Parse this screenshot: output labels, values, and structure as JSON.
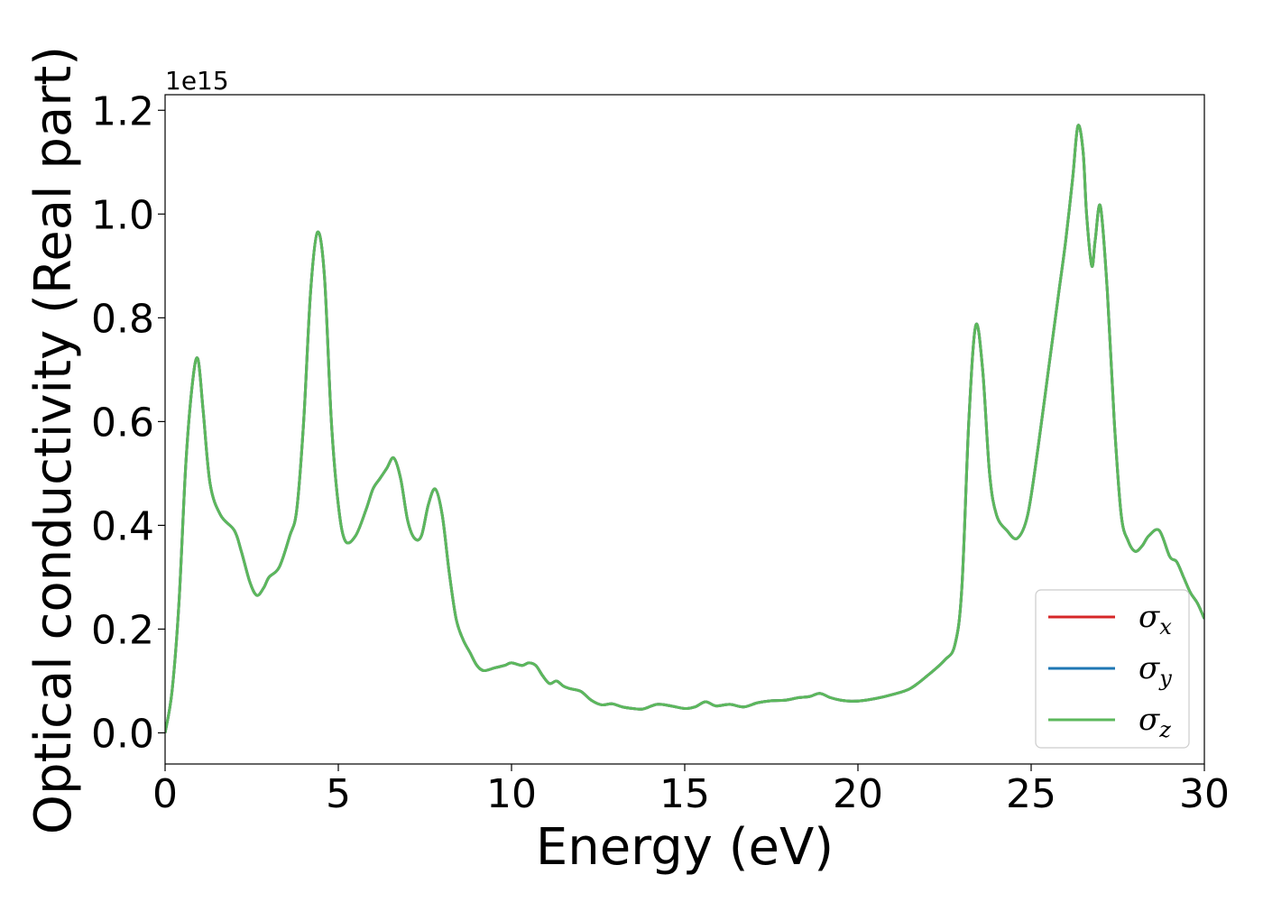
{
  "chart_data": {
    "type": "line",
    "xlabel": "Energy (eV)",
    "ylabel": "Optical conductivity (Real part)",
    "y_offset_label": "1e15",
    "xlim": [
      0,
      30
    ],
    "ylim": [
      -0.06,
      1.23
    ],
    "xticks": [
      0,
      5,
      10,
      15,
      20,
      25,
      30
    ],
    "xtick_labels": [
      "0",
      "5",
      "10",
      "15",
      "20",
      "25",
      "30"
    ],
    "yticks": [
      0.0,
      0.2,
      0.4,
      0.6,
      0.8,
      1.0,
      1.2
    ],
    "ytick_labels": [
      "0.0",
      "0.2",
      "0.4",
      "0.6",
      "0.8",
      "1.0",
      "1.2"
    ],
    "grid": false,
    "legend_position": "lower-right",
    "x": [
      0,
      0.2,
      0.4,
      0.6,
      0.8,
      0.95,
      1.1,
      1.3,
      1.6,
      2.0,
      2.2,
      2.45,
      2.65,
      2.85,
      3.0,
      3.3,
      3.6,
      3.8,
      4.0,
      4.2,
      4.4,
      4.6,
      4.8,
      5.0,
      5.2,
      5.5,
      5.8,
      6.0,
      6.2,
      6.4,
      6.6,
      6.8,
      7.0,
      7.2,
      7.4,
      7.6,
      7.8,
      8.0,
      8.2,
      8.4,
      8.6,
      8.8,
      9.0,
      9.2,
      9.5,
      9.8,
      10.0,
      10.3,
      10.5,
      10.7,
      10.9,
      11.1,
      11.3,
      11.5,
      11.7,
      12.0,
      12.3,
      12.6,
      12.9,
      13.2,
      13.5,
      13.8,
      14.2,
      14.6,
      15.0,
      15.3,
      15.6,
      15.9,
      16.3,
      16.7,
      17.1,
      17.5,
      17.9,
      18.3,
      18.6,
      18.9,
      19.2,
      19.5,
      19.8,
      20.1,
      20.5,
      21.0,
      21.5,
      22.0,
      22.5,
      22.8,
      23.0,
      23.2,
      23.4,
      23.6,
      23.8,
      24.0,
      24.3,
      24.6,
      24.9,
      25.2,
      25.5,
      25.8,
      26.0,
      26.2,
      26.35,
      26.5,
      26.6,
      26.75,
      26.85,
      27.0,
      27.2,
      27.4,
      27.6,
      27.8,
      28.0,
      28.2,
      28.4,
      28.7,
      29.0,
      29.2,
      29.4,
      29.6,
      29.8,
      30.0
    ],
    "series": [
      {
        "name": "σx",
        "color": "#d62728",
        "values": [
          0.0,
          0.08,
          0.25,
          0.52,
          0.68,
          0.72,
          0.62,
          0.48,
          0.42,
          0.39,
          0.35,
          0.29,
          0.265,
          0.28,
          0.3,
          0.32,
          0.38,
          0.43,
          0.6,
          0.85,
          0.965,
          0.88,
          0.6,
          0.44,
          0.37,
          0.38,
          0.43,
          0.47,
          0.49,
          0.51,
          0.53,
          0.49,
          0.41,
          0.375,
          0.38,
          0.44,
          0.47,
          0.42,
          0.31,
          0.22,
          0.18,
          0.155,
          0.13,
          0.12,
          0.125,
          0.13,
          0.135,
          0.13,
          0.135,
          0.13,
          0.11,
          0.095,
          0.1,
          0.09,
          0.085,
          0.08,
          0.063,
          0.054,
          0.056,
          0.05,
          0.047,
          0.046,
          0.055,
          0.052,
          0.047,
          0.05,
          0.06,
          0.052,
          0.055,
          0.05,
          0.058,
          0.062,
          0.063,
          0.068,
          0.07,
          0.076,
          0.068,
          0.063,
          0.061,
          0.062,
          0.066,
          0.074,
          0.085,
          0.11,
          0.14,
          0.17,
          0.28,
          0.6,
          0.785,
          0.7,
          0.5,
          0.42,
          0.39,
          0.375,
          0.42,
          0.55,
          0.7,
          0.85,
          0.95,
          1.07,
          1.17,
          1.12,
          1.0,
          0.9,
          0.95,
          1.015,
          0.85,
          0.6,
          0.42,
          0.37,
          0.35,
          0.36,
          0.38,
          0.39,
          0.34,
          0.33,
          0.3,
          0.27,
          0.25,
          0.22
        ]
      },
      {
        "name": "σy",
        "color": "#1f77b4",
        "values": [
          0.0,
          0.08,
          0.25,
          0.52,
          0.68,
          0.72,
          0.62,
          0.48,
          0.42,
          0.39,
          0.35,
          0.29,
          0.265,
          0.28,
          0.3,
          0.32,
          0.38,
          0.43,
          0.6,
          0.85,
          0.965,
          0.88,
          0.6,
          0.44,
          0.37,
          0.38,
          0.43,
          0.47,
          0.49,
          0.51,
          0.53,
          0.49,
          0.41,
          0.375,
          0.38,
          0.44,
          0.47,
          0.42,
          0.31,
          0.22,
          0.18,
          0.155,
          0.13,
          0.12,
          0.125,
          0.13,
          0.135,
          0.13,
          0.135,
          0.13,
          0.11,
          0.095,
          0.1,
          0.09,
          0.085,
          0.08,
          0.063,
          0.054,
          0.056,
          0.05,
          0.047,
          0.046,
          0.055,
          0.052,
          0.047,
          0.05,
          0.06,
          0.052,
          0.055,
          0.05,
          0.058,
          0.062,
          0.063,
          0.068,
          0.07,
          0.076,
          0.068,
          0.063,
          0.061,
          0.062,
          0.066,
          0.074,
          0.085,
          0.11,
          0.14,
          0.17,
          0.28,
          0.6,
          0.785,
          0.7,
          0.5,
          0.42,
          0.39,
          0.375,
          0.42,
          0.55,
          0.7,
          0.85,
          0.95,
          1.07,
          1.17,
          1.12,
          1.0,
          0.9,
          0.95,
          1.015,
          0.85,
          0.6,
          0.42,
          0.37,
          0.35,
          0.36,
          0.38,
          0.39,
          0.34,
          0.33,
          0.3,
          0.27,
          0.25,
          0.22
        ]
      },
      {
        "name": "σz",
        "color": "#5cb85c",
        "values": [
          0.0,
          0.08,
          0.25,
          0.52,
          0.68,
          0.72,
          0.62,
          0.48,
          0.42,
          0.39,
          0.35,
          0.29,
          0.265,
          0.28,
          0.3,
          0.32,
          0.38,
          0.43,
          0.6,
          0.85,
          0.965,
          0.88,
          0.6,
          0.44,
          0.37,
          0.38,
          0.43,
          0.47,
          0.49,
          0.51,
          0.53,
          0.49,
          0.41,
          0.375,
          0.38,
          0.44,
          0.47,
          0.42,
          0.31,
          0.22,
          0.18,
          0.155,
          0.13,
          0.12,
          0.125,
          0.13,
          0.135,
          0.13,
          0.135,
          0.13,
          0.11,
          0.095,
          0.1,
          0.09,
          0.085,
          0.08,
          0.063,
          0.054,
          0.056,
          0.05,
          0.047,
          0.046,
          0.055,
          0.052,
          0.047,
          0.05,
          0.06,
          0.052,
          0.055,
          0.05,
          0.058,
          0.062,
          0.063,
          0.068,
          0.07,
          0.076,
          0.068,
          0.063,
          0.061,
          0.062,
          0.066,
          0.074,
          0.085,
          0.11,
          0.14,
          0.17,
          0.28,
          0.6,
          0.785,
          0.7,
          0.5,
          0.42,
          0.39,
          0.375,
          0.42,
          0.55,
          0.7,
          0.85,
          0.95,
          1.07,
          1.17,
          1.12,
          1.0,
          0.9,
          0.95,
          1.015,
          0.85,
          0.6,
          0.42,
          0.37,
          0.35,
          0.36,
          0.38,
          0.39,
          0.34,
          0.33,
          0.3,
          0.27,
          0.25,
          0.22
        ]
      }
    ],
    "legend": [
      {
        "symbol": "σ",
        "sub": "x",
        "color": "#d62728"
      },
      {
        "symbol": "σ",
        "sub": "y",
        "color": "#1f77b4"
      },
      {
        "symbol": "σ",
        "sub": "z",
        "color": "#5cb85c"
      }
    ]
  }
}
